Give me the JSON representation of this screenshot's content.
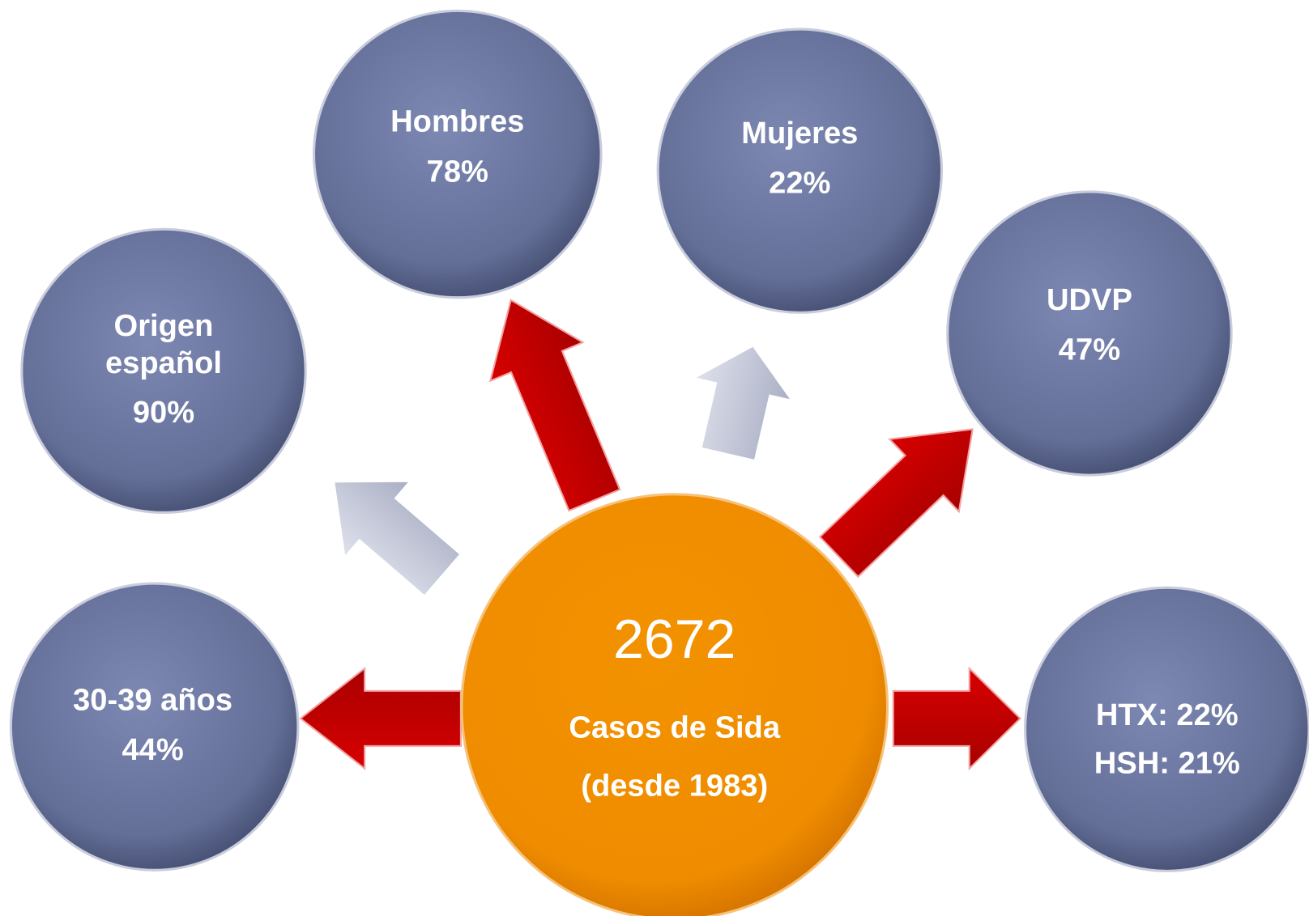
{
  "center": {
    "value": "2672",
    "lines": [
      "Casos de Sida",
      "(desde 1983)"
    ]
  },
  "nodes": [
    {
      "lines": [
        "Hombres",
        "78%"
      ]
    },
    {
      "lines": [
        "Mujeres",
        "22%"
      ]
    },
    {
      "lines": [
        "Origen",
        "español",
        "90%"
      ]
    },
    {
      "lines": [
        "UDVP",
        "47%"
      ]
    },
    {
      "lines": [
        "30-39 años",
        "44%"
      ]
    },
    {
      "lines": [
        "HTX: 22%",
        "HSH: 21%"
      ]
    }
  ]
}
